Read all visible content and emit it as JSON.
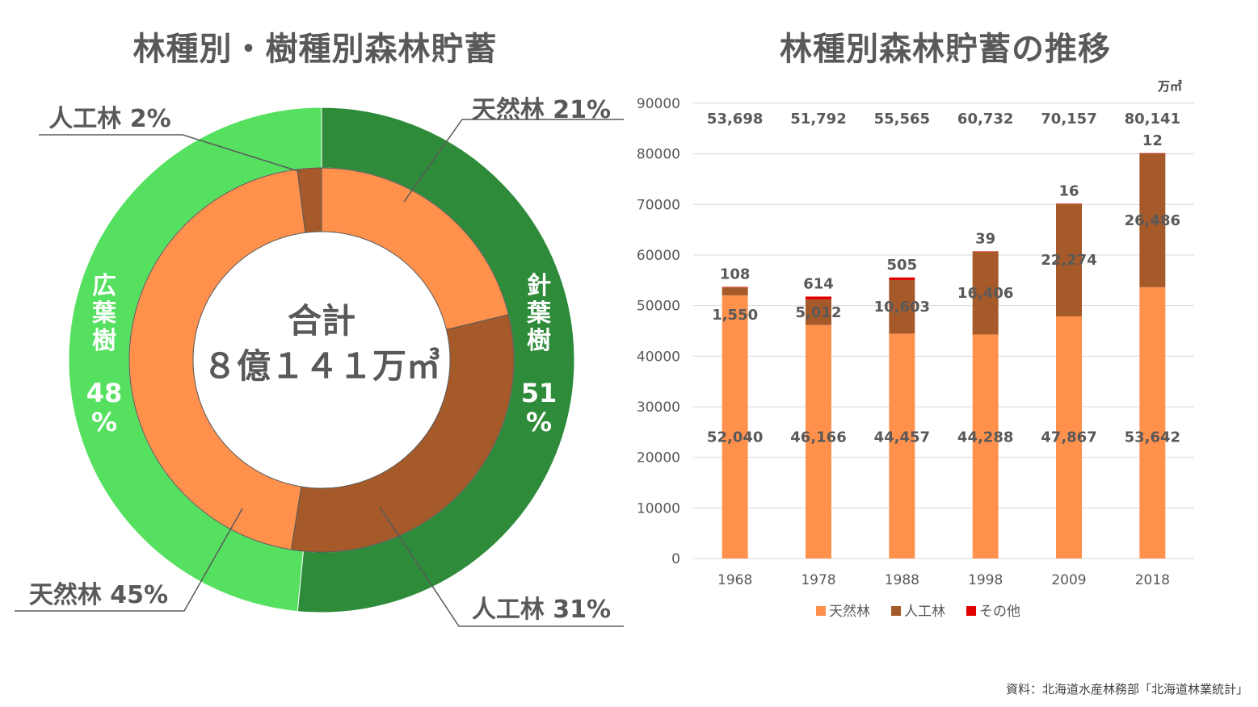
{
  "colors": {
    "natural": "#FF914D",
    "planted": "#A65A2A",
    "other": "#E00000",
    "conifer": "#2E8B3A",
    "broadleaf": "#55E060",
    "text": "#595959"
  },
  "titles": {
    "left": "林種別・樹種別森林貯蓄",
    "right": "林種別森林貯蓄の推移"
  },
  "source": "資料：北海道水産林務部「北海道林業統計」",
  "chart_data": [
    {
      "type": "pie",
      "title": "林種別・樹種別森林貯蓄",
      "center_label": [
        "合計",
        "８億１４１万㎥"
      ],
      "outer": [
        {
          "name": "針葉樹",
          "value": 51,
          "label": "51%"
        },
        {
          "name": "広葉樹",
          "value": 48,
          "label": "48%"
        }
      ],
      "inner": [
        {
          "name": "天然林",
          "group": "針葉樹",
          "value": 21,
          "label": "天然林  21%"
        },
        {
          "name": "人工林",
          "group": "針葉樹",
          "value": 31,
          "label": "人工林  31%"
        },
        {
          "name": "天然林",
          "group": "広葉樹",
          "value": 45,
          "label": "天然林  45%"
        },
        {
          "name": "人工林",
          "group": "広葉樹",
          "value": 2,
          "label": "人工林  2%"
        }
      ]
    },
    {
      "type": "bar",
      "stacked": true,
      "title": "林種別森林貯蓄の推移",
      "unit": "万㎥",
      "categories": [
        "1968",
        "1978",
        "1988",
        "1998",
        "2009",
        "2018"
      ],
      "totals": [
        "53,698",
        "51,792",
        "55,565",
        "60,732",
        "70,157",
        "80,141"
      ],
      "ylim": [
        0,
        90000
      ],
      "yticks": [
        0,
        10000,
        20000,
        30000,
        40000,
        50000,
        60000,
        70000,
        80000,
        90000
      ],
      "series": [
        {
          "name": "天然林",
          "values": [
            52040,
            46166,
            44457,
            44288,
            47867,
            53642
          ],
          "labels": [
            "52,040",
            "46,166",
            "44,457",
            "44,288",
            "47,867",
            "53,642"
          ]
        },
        {
          "name": "人工林",
          "values": [
            1550,
            5012,
            10603,
            16406,
            22274,
            26486
          ],
          "labels": [
            "1,550",
            "5,012",
            "10,603",
            "16,406",
            "22,274",
            "26,486"
          ]
        },
        {
          "name": "その他",
          "values": [
            108,
            614,
            505,
            39,
            16,
            12
          ],
          "labels": [
            "108",
            "614",
            "505",
            "39",
            "16",
            "12"
          ]
        }
      ],
      "legend_position": "bottom",
      "grid": true
    }
  ]
}
